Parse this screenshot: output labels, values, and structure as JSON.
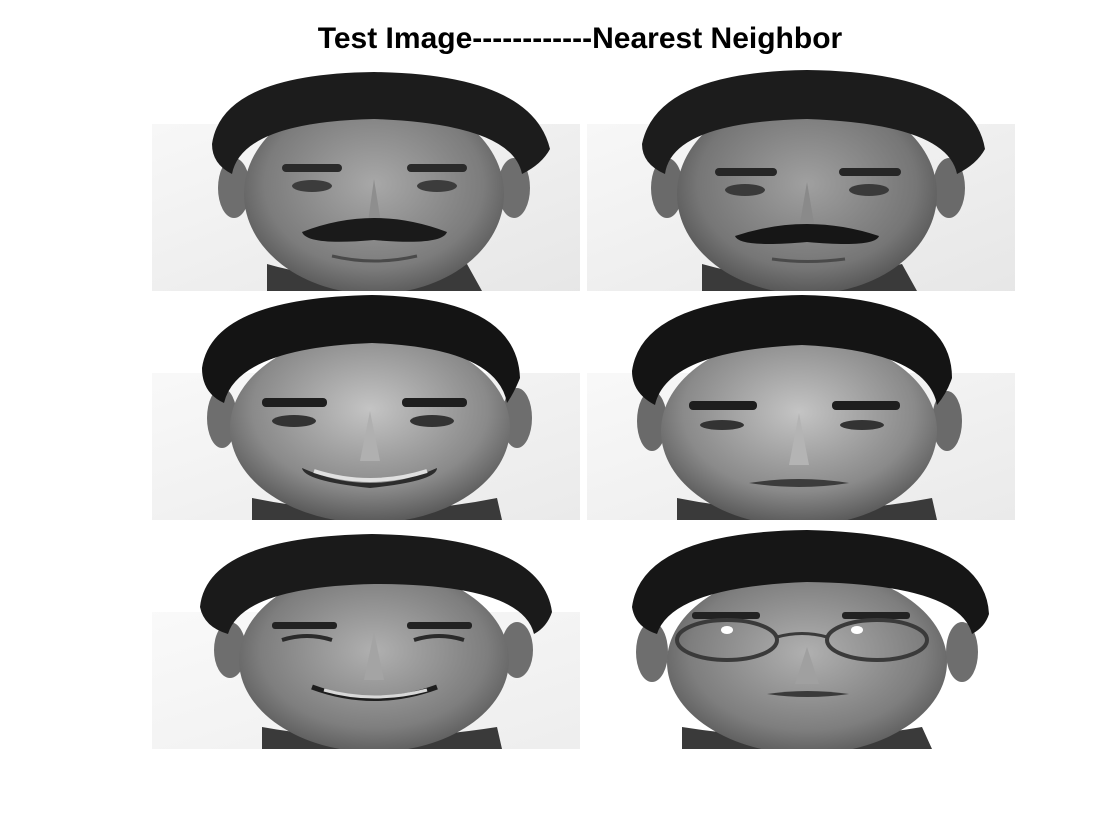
{
  "figure": {
    "title": "Test Image------------Nearest Neighbor"
  },
  "pairs": [
    {
      "test_image": {
        "subject": "face-mustache-man",
        "expression": "neutral-smile"
      },
      "nearest_neighbor": {
        "subject": "face-mustache-man",
        "expression": "neutral"
      }
    },
    {
      "test_image": {
        "subject": "face-dark-hair-man",
        "expression": "smiling"
      },
      "nearest_neighbor": {
        "subject": "face-dark-hair-man",
        "expression": "neutral"
      }
    },
    {
      "test_image": {
        "subject": "face-asian-man",
        "expression": "smiling"
      },
      "nearest_neighbor": {
        "subject": "face-asian-man-glasses",
        "expression": "neutral"
      }
    }
  ]
}
